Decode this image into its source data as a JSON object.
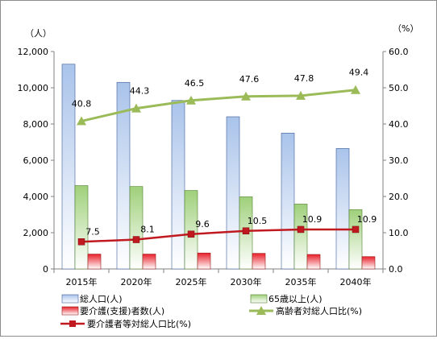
{
  "chart_data": {
    "type": "bar",
    "categories": [
      "2015年",
      "2020年",
      "2025年",
      "2030年",
      "2035年",
      "2040年"
    ],
    "left_axis": {
      "unit": "（人）",
      "ylim": [
        0,
        12000
      ],
      "ticks": [
        0,
        2000,
        4000,
        6000,
        8000,
        10000,
        12000
      ],
      "tick_labels": [
        "0",
        "2,000",
        "4,000",
        "6,000",
        "8,000",
        "10,000",
        "12,000"
      ]
    },
    "right_axis": {
      "unit": "（%）",
      "ylim": [
        0,
        60
      ],
      "ticks": [
        0,
        10,
        20,
        30,
        40,
        50,
        60
      ],
      "tick_labels": [
        "0.0",
        "10.0",
        "20.0",
        "30.0",
        "40.0",
        "50.0",
        "60.0"
      ]
    },
    "series": [
      {
        "name": "総人口(人)",
        "kind": "bar",
        "axis": "left",
        "color": "#a9c3ea",
        "values": [
          11300,
          10300,
          9300,
          8400,
          7500,
          6650
        ]
      },
      {
        "name": "65歳以上(人)",
        "kind": "bar",
        "axis": "left",
        "color": "#9fd07a",
        "values": [
          4600,
          4550,
          4330,
          3980,
          3580,
          3270
        ]
      },
      {
        "name": "要介護(支援)者数(人)",
        "kind": "bar",
        "axis": "left",
        "color": "#e8202a",
        "values": [
          820,
          820,
          880,
          860,
          800,
          680
        ]
      },
      {
        "name": "高齢者対総人口比(%)",
        "kind": "line",
        "axis": "right",
        "color": "#9bbb59",
        "marker": "triangle",
        "values": [
          40.8,
          44.3,
          46.5,
          47.6,
          47.8,
          49.4
        ],
        "labels": [
          "40.8",
          "44.3",
          "46.5",
          "47.6",
          "47.8",
          "49.4"
        ]
      },
      {
        "name": "要介護者等対総人口比(%)",
        "kind": "line",
        "axis": "right",
        "color": "#c0191f",
        "marker": "square",
        "values": [
          7.5,
          8.1,
          9.6,
          10.5,
          10.9,
          10.9
        ],
        "labels": [
          "7.5",
          "8.1",
          "9.6",
          "10.5",
          "10.9",
          "10.9"
        ]
      }
    ],
    "legend": {
      "position": "bottom",
      "order": [
        0,
        1,
        2,
        3,
        4
      ]
    },
    "grid": false
  }
}
